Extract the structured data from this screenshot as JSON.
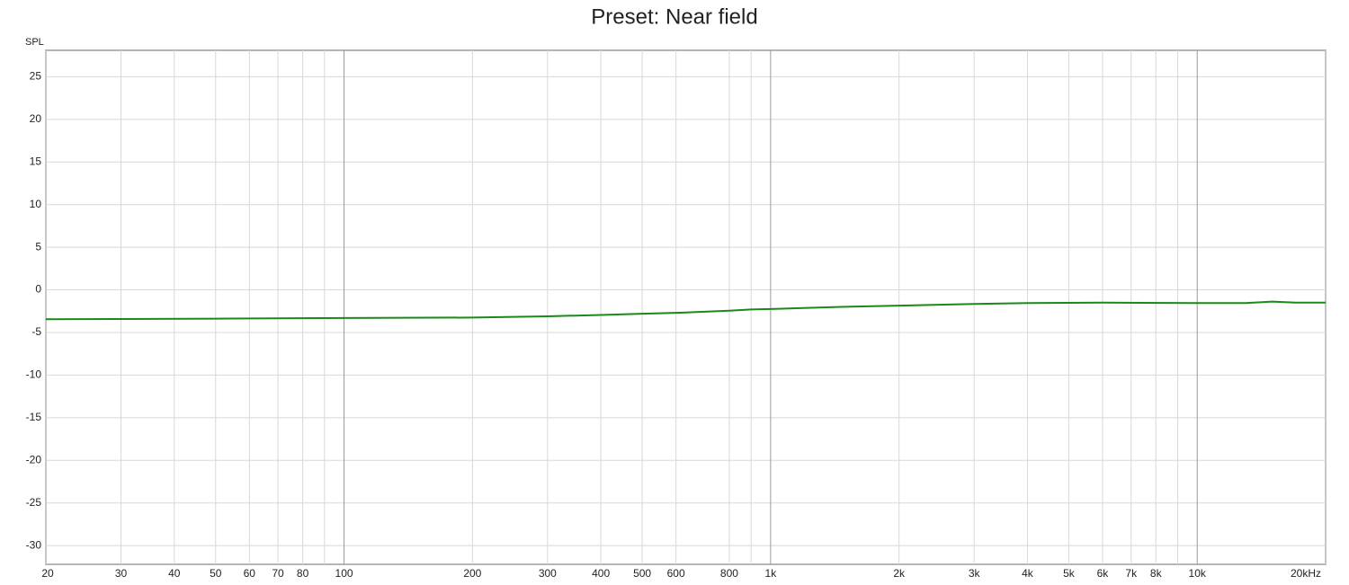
{
  "chart_data": {
    "type": "line",
    "title": "Preset: Near field",
    "y_label": "SPL",
    "x_scale": "log",
    "grid": true,
    "xlim": [
      20,
      20000
    ],
    "ylim": [
      -32.2,
      28.1
    ],
    "xticks": [
      20,
      30,
      40,
      50,
      60,
      70,
      80,
      100,
      200,
      300,
      400,
      500,
      600,
      800,
      {
        "value": 1000,
        "label": "1k"
      },
      {
        "value": 2000,
        "label": "2k"
      },
      {
        "value": 3000,
        "label": "3k"
      },
      {
        "value": 4000,
        "label": "4k"
      },
      {
        "value": 5000,
        "label": "5k"
      },
      {
        "value": 6000,
        "label": "6k"
      },
      {
        "value": 7000,
        "label": "7k"
      },
      {
        "value": 8000,
        "label": "8k"
      },
      {
        "value": 10000,
        "label": "10k"
      },
      {
        "value": 20000,
        "label": "20kHz"
      }
    ],
    "x_minor_ticks": [
      90,
      900,
      9000
    ],
    "yticks": [
      25,
      20,
      15,
      10,
      5,
      0,
      -5,
      -10,
      -15,
      -20,
      -25,
      -30
    ],
    "series": [
      {
        "color": "#178a17",
        "x": [
          20,
          30,
          50,
          100,
          200,
          300,
          400,
          500,
          600,
          800,
          900,
          1000,
          1500,
          2000,
          3000,
          4000,
          6000,
          10000,
          13000,
          15000,
          17000,
          20000
        ],
        "values": [
          -3.45,
          -3.42,
          -3.38,
          -3.3,
          -3.25,
          -3.1,
          -2.95,
          -2.8,
          -2.7,
          -2.45,
          -2.3,
          -2.25,
          -1.98,
          -1.85,
          -1.65,
          -1.55,
          -1.5,
          -1.55,
          -1.55,
          -1.38,
          -1.5,
          -1.5
        ]
      }
    ]
  }
}
